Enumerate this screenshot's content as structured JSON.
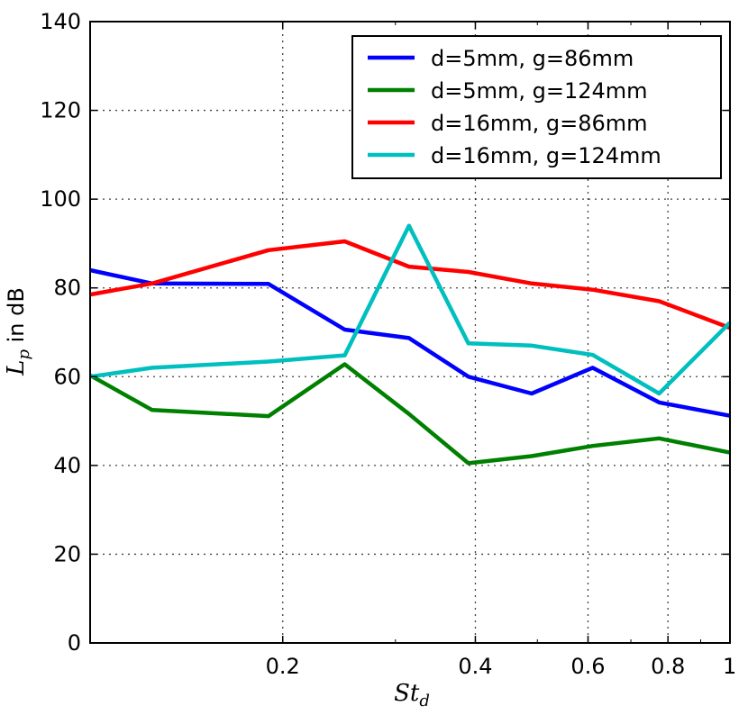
{
  "chart_data": {
    "type": "line",
    "xscale": "log",
    "xlim": [
      0.1,
      1
    ],
    "ylim": [
      0,
      140
    ],
    "xlabel": "St_d",
    "ylabel": "L_p in dB",
    "xlabel_main": "St",
    "xlabel_sub": "d",
    "ylabel_main": "L",
    "ylabel_sub": "p",
    "ylabel_suffix": " in dB",
    "grid": true,
    "legend_position": "top-right",
    "x_tick_values": [
      0.2,
      0.4,
      0.6,
      0.8,
      1
    ],
    "x_tick_labels": [
      "0.2",
      "0.4",
      "0.6",
      "0.8",
      "1"
    ],
    "y_ticks": [
      0,
      20,
      40,
      60,
      80,
      100,
      120,
      140
    ],
    "y_tick_labels": [
      "0",
      "20",
      "40",
      "60",
      "80",
      "100",
      "120",
      "140"
    ],
    "x": [
      0.1,
      0.125,
      0.19,
      0.25,
      0.315,
      0.39,
      0.49,
      0.61,
      0.775,
      1.0
    ],
    "series": [
      {
        "name": "d=5mm, g=86mm",
        "color": "#0000ff",
        "values": [
          84.0,
          81.0,
          80.9,
          70.6,
          68.7,
          60.0,
          56.2,
          62.0,
          54.2,
          51.2
        ]
      },
      {
        "name": "d=5mm, g=124mm",
        "color": "#008000",
        "values": [
          60.3,
          52.5,
          51.1,
          62.8,
          51.6,
          40.5,
          42.1,
          44.4,
          46.1,
          42.9
        ]
      },
      {
        "name": "d=16mm, g=86mm",
        "color": "#ff0000",
        "values": [
          78.5,
          81.0,
          88.5,
          90.5,
          84.8,
          83.6,
          81.0,
          79.6,
          77.0,
          71.0
        ]
      },
      {
        "name": "d=16mm, g=124mm",
        "color": "#00bfbf",
        "values": [
          60.0,
          62.0,
          63.4,
          64.8,
          94.0,
          67.5,
          67.0,
          64.9,
          56.2,
          72.2
        ]
      }
    ]
  }
}
